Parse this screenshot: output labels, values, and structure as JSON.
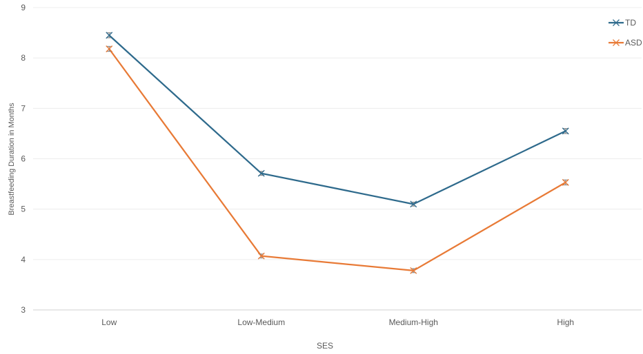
{
  "chart_data": {
    "type": "line",
    "title": "",
    "xlabel": "SES",
    "ylabel": "Breastfeeding Duration in Months",
    "categories": [
      "Low",
      "Low-Medium",
      "Medium-High",
      "High"
    ],
    "ylim": [
      3,
      9
    ],
    "yticks": [
      "3",
      "4",
      "5",
      "6",
      "7",
      "8",
      "9"
    ],
    "grid": "horizontal",
    "legend_position": "top-right",
    "series": [
      {
        "name": "TD",
        "color": "#2E6A8C",
        "values": [
          8.45,
          5.71,
          5.1,
          6.55
        ],
        "error": [
          0.05,
          0.04,
          0.04,
          0.05
        ]
      },
      {
        "name": "ASD",
        "color": "#E87A36",
        "values": [
          8.18,
          4.07,
          3.78,
          5.53
        ],
        "error": [
          0.05,
          0.04,
          0.04,
          0.05
        ]
      }
    ]
  }
}
